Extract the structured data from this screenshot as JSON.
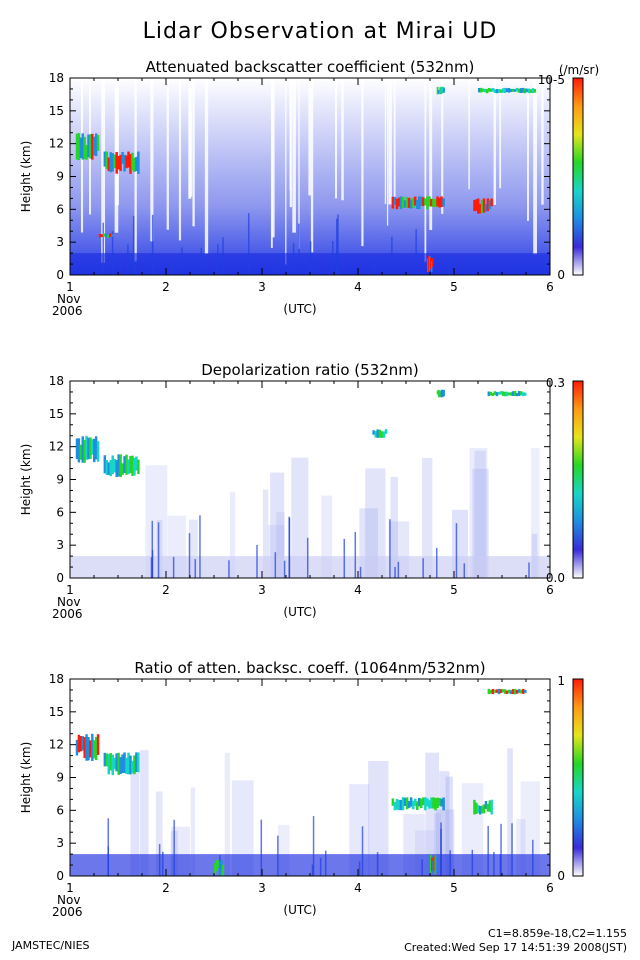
{
  "figure": {
    "title": "Lidar Observation at Mirai UD",
    "footer_left": "JAMSTEC/NIES",
    "footer_right_line1": "C1=8.859e-18,C2=1.155",
    "footer_right_line2": "Created:Wed Sep 17 14:51:39 2008(JST)"
  },
  "chart_data": [
    {
      "type": "heatmap",
      "title": "Attenuated backscatter coefficient (532nm)",
      "xlabel": "(UTC)",
      "ylabel": "Height (km)",
      "x_start_label": [
        "Nov",
        "2006"
      ],
      "xlim": [
        1,
        6
      ],
      "ylim": [
        0,
        18
      ],
      "x_ticks": [
        1,
        2,
        3,
        4,
        5,
        6
      ],
      "y_ticks": [
        0,
        3,
        6,
        9,
        12,
        15,
        18
      ],
      "colorbar": {
        "unit": "(/m/sr)",
        "max_label": "10-5",
        "min_label": "0",
        "colors": [
          "#ffffff",
          "#3a2bd8",
          "#1f8de0",
          "#17d6c8",
          "#26d626",
          "#e5e51a",
          "#ff9a14",
          "#ff1a0a"
        ]
      },
      "features": {
        "background_color": "#ffffff",
        "molecular_gradient": true,
        "boundary_layer_color": "#1b2ee0",
        "clouds": [
          {
            "x": [
              1.06,
              1.3
            ],
            "y": [
              10.5,
              13.0
            ],
            "level": "high"
          },
          {
            "x": [
              1.35,
              1.72
            ],
            "y": [
              9.2,
              11.3
            ],
            "level": "high"
          },
          {
            "x": [
              4.35,
              4.9
            ],
            "y": [
              6.0,
              7.2
            ],
            "level": "high"
          },
          {
            "x": [
              4.82,
              4.9
            ],
            "y": [
              16.5,
              17.2
            ],
            "level": "medium"
          },
          {
            "x": [
              5.25,
              5.85
            ],
            "y": [
              16.6,
              17.1
            ],
            "level": "medium"
          },
          {
            "x": [
              5.2,
              5.4
            ],
            "y": [
              5.6,
              7.0
            ],
            "level": "high"
          },
          {
            "x": [
              1.3,
              1.45
            ],
            "y": [
              3.4,
              3.8
            ],
            "level": "high"
          },
          {
            "x": [
              4.72,
              4.78
            ],
            "y": [
              0.2,
              1.8
            ],
            "level": "high"
          }
        ]
      }
    },
    {
      "type": "heatmap",
      "title": "Depolarization ratio (532nm)",
      "xlabel": "(UTC)",
      "ylabel": "Height (km)",
      "x_start_label": [
        "Nov",
        "2006"
      ],
      "xlim": [
        1,
        6
      ],
      "ylim": [
        0,
        18
      ],
      "x_ticks": [
        1,
        2,
        3,
        4,
        5,
        6
      ],
      "y_ticks": [
        0,
        3,
        6,
        9,
        12,
        15,
        18
      ],
      "colorbar": {
        "unit": "",
        "max_label": "0.3",
        "min_label": "0.0",
        "colors": [
          "#ffffff",
          "#3a2bd8",
          "#1f8de0",
          "#17d6c8",
          "#26d626",
          "#e5e51a",
          "#ff9a14",
          "#ff1a0a"
        ]
      },
      "features": {
        "background_color": "#ffffff",
        "molecular_gradient": false,
        "boundary_layer_color": "#c9cdf2",
        "clouds": [
          {
            "x": [
              1.06,
              1.3
            ],
            "y": [
              10.5,
              13.0
            ],
            "level": "medium"
          },
          {
            "x": [
              1.35,
              1.72
            ],
            "y": [
              9.2,
              11.3
            ],
            "level": "medium"
          },
          {
            "x": [
              4.82,
              4.9
            ],
            "y": [
              16.5,
              17.2
            ],
            "level": "medium"
          },
          {
            "x": [
              5.35,
              5.75
            ],
            "y": [
              16.6,
              17.1
            ],
            "level": "medium"
          },
          {
            "x": [
              4.15,
              4.3
            ],
            "y": [
              12.8,
              13.6
            ],
            "level": "medium"
          }
        ]
      }
    },
    {
      "type": "heatmap",
      "title": "Ratio of atten. backsc. coeff. (1064nm/532nm)",
      "xlabel": "(UTC)",
      "ylabel": "Height (km)",
      "x_start_label": [
        "Nov",
        "2006"
      ],
      "xlim": [
        1,
        6
      ],
      "ylim": [
        0,
        18
      ],
      "x_ticks": [
        1,
        2,
        3,
        4,
        5,
        6
      ],
      "y_ticks": [
        0,
        3,
        6,
        9,
        12,
        15,
        18
      ],
      "colorbar": {
        "unit": "",
        "max_label": "1",
        "min_label": "0",
        "colors": [
          "#ffffff",
          "#3a2bd8",
          "#1f8de0",
          "#17d6c8",
          "#26d626",
          "#e5e51a",
          "#ff9a14",
          "#ff1a0a"
        ]
      },
      "features": {
        "background_color": "#ffffff",
        "molecular_gradient": false,
        "boundary_layer_color": "#1b2ee0",
        "clouds": [
          {
            "x": [
              1.06,
              1.3
            ],
            "y": [
              10.5,
              13.0
            ],
            "level": "high"
          },
          {
            "x": [
              1.35,
              1.72
            ],
            "y": [
              9.2,
              11.3
            ],
            "level": "medium"
          },
          {
            "x": [
              4.35,
              4.9
            ],
            "y": [
              6.0,
              7.2
            ],
            "level": "medium"
          },
          {
            "x": [
              5.2,
              5.4
            ],
            "y": [
              5.6,
              7.0
            ],
            "level": "medium"
          },
          {
            "x": [
              4.75,
              4.82
            ],
            "y": [
              0.1,
              2.0
            ],
            "level": "high"
          },
          {
            "x": [
              2.5,
              2.6
            ],
            "y": [
              0.0,
              1.5
            ],
            "level": "high"
          },
          {
            "x": [
              5.35,
              5.75
            ],
            "y": [
              16.6,
              17.1
            ],
            "level": "high"
          }
        ]
      }
    }
  ]
}
